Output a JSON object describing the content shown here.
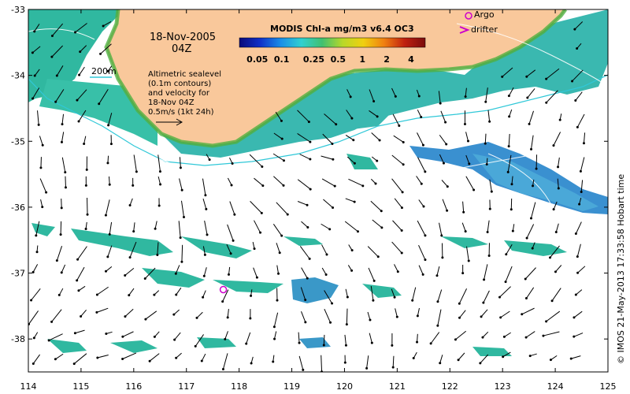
{
  "map": {
    "date_label": "18-Nov-2005",
    "time_label": "04Z",
    "colorbar": {
      "title": "MODIS Chl-a mg/m3 v6.4 OC3",
      "tick_labels": [
        "0.05",
        "0.1",
        "0.25",
        "0.5",
        "1",
        "2",
        "4"
      ],
      "colors": [
        "#0a0a7a",
        "#1030c8",
        "#1a8ee8",
        "#30d0d0",
        "#40c070",
        "#b8d828",
        "#f0d010",
        "#f08010",
        "#c02010",
        "#7a0c0c"
      ]
    },
    "legend": {
      "argo_label": "Argo",
      "drifter_label": "drifter",
      "argo_color": "#cc00cc",
      "drifter_color": "#cc00cc"
    },
    "isobath_label": "200m",
    "isobath_color": "#30c8d8",
    "sealevel_note": {
      "lines": [
        "Altimetric sealevel",
        "(0.1m contours)",
        "and velocity for",
        "18-Nov 04Z",
        "0.5m/s (1kt 24h)"
      ]
    },
    "x_axis": {
      "ticks": [
        "114",
        "115",
        "116",
        "117",
        "118",
        "119",
        "120",
        "121",
        "122",
        "123",
        "124",
        "125"
      ],
      "range": [
        114,
        125
      ]
    },
    "y_axis": {
      "ticks": [
        "-33",
        "-34",
        "-35",
        "-36",
        "-37",
        "-38"
      ],
      "range": [
        -38.5,
        -33
      ]
    },
    "land_color": "#f9c89b",
    "credit": "© IMOS 21-May-2013 17:33:58 Hobart time",
    "argo_float": {
      "lon": 117.7,
      "lat": -37.25
    }
  }
}
